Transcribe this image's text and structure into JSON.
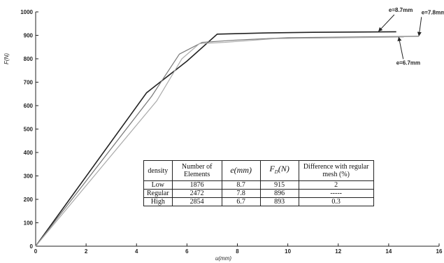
{
  "chart_data": {
    "type": "line",
    "xlabel": "u(mm)",
    "ylabel": "F(N)",
    "xlim": [
      0,
      16
    ],
    "ylim": [
      0,
      1000
    ],
    "xticks": [
      0,
      2,
      4,
      6,
      8,
      10,
      12,
      14,
      16
    ],
    "yticks": [
      0,
      100,
      200,
      300,
      400,
      500,
      600,
      700,
      800,
      900,
      1000
    ],
    "grid": false,
    "series": [
      {
        "name": "e=8.7mm",
        "color": "#222222",
        "x": [
          0,
          4.4,
          6.0,
          7.2,
          9.0,
          11.0,
          14.3
        ],
        "y": [
          0,
          655,
          790,
          905,
          910,
          913,
          915
        ]
      },
      {
        "name": "e=7.8mm",
        "color": "#777777",
        "x": [
          0,
          4.6,
          5.7,
          6.6,
          8.0,
          10.0,
          15.2
        ],
        "y": [
          0,
          640,
          820,
          870,
          880,
          890,
          896
        ]
      },
      {
        "name": "e=6.7mm",
        "color": "#aaaaaa",
        "x": [
          0,
          4.8,
          5.8,
          6.5,
          7.5,
          9.5,
          14.6
        ],
        "y": [
          0,
          620,
          800,
          865,
          870,
          886,
          893
        ]
      }
    ],
    "annotations": [
      {
        "text": "e=8.7mm",
        "x": 14.0,
        "y": 1000
      },
      {
        "text": "e=7.8mm",
        "x": 15.3,
        "y": 990
      },
      {
        "text": "e=6.7mm",
        "x": 14.3,
        "y": 775
      }
    ]
  },
  "table": {
    "headers": [
      "density",
      "Number of Elements",
      "e(mm)",
      "F_D(N)",
      "Difference with regular mesh (%)"
    ],
    "h_density": "density",
    "h_elements": "Number of Elements",
    "h_e": "e(mm)",
    "h_fd": "F",
    "h_fd_sub": "D",
    "h_fd_unit": "(N)",
    "h_diff": "Difference with regular mesh (%)",
    "rows": [
      {
        "density": "Low",
        "elements": "1876",
        "e": "8.7",
        "fd": "915",
        "diff": "2"
      },
      {
        "density": "Regular",
        "elements": "2472",
        "e": "7.8",
        "fd": "896",
        "diff": "-----"
      },
      {
        "density": "High",
        "elements": "2854",
        "e": "6.7",
        "fd": "893",
        "diff": "0.3"
      }
    ]
  }
}
